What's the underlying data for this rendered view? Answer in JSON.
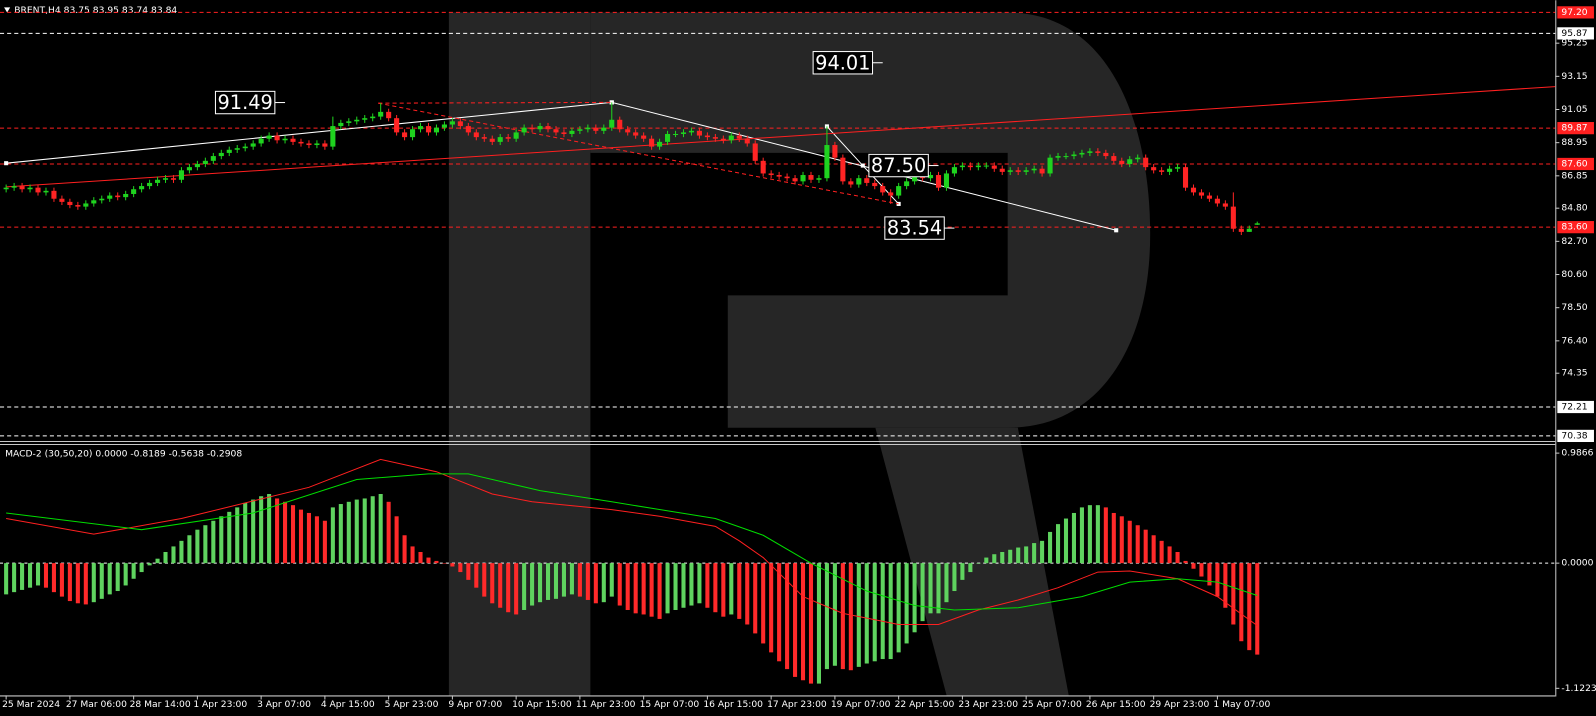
{
  "chart_data": [
    {
      "type": "candlestick",
      "title": "BRENT,H4  83.75 83.95 83.74 83.84",
      "up_color": "#1fd31f",
      "down_color": "#ff2424",
      "xlim": [
        -0.77,
        194.4
      ],
      "ylim": [
        70.06,
        97.97
      ],
      "yticks": [
        95.25,
        93.15,
        91.05,
        88.95,
        86.85,
        {
          "value": 84.8,
          "label": "84.80"
        },
        {
          "value": 82.7,
          "label": "82.70"
        },
        {
          "value": 80.6,
          "label": "80.60"
        },
        {
          "value": 78.5,
          "label": "78.50"
        },
        {
          "value": 76.4,
          "label": "76.40"
        },
        74.35
      ],
      "xticks": [
        {
          "value": 0,
          "label": "25 Mar 2024"
        },
        {
          "value": 8,
          "label": "27 Mar 06:00"
        },
        {
          "value": 16,
          "label": "28 Mar 14:00"
        },
        {
          "value": 24,
          "label": "1 Apr 23:00"
        },
        {
          "value": 32,
          "label": "3 Apr 07:00"
        },
        {
          "value": 40,
          "label": "4 Apr 15:00"
        },
        {
          "value": 48,
          "label": "5 Apr 23:00"
        },
        {
          "value": 56,
          "label": "9 Apr 07:00"
        },
        {
          "value": 64,
          "label": "10 Apr 15:00"
        },
        {
          "value": 72,
          "label": "11 Apr 23:00"
        },
        {
          "value": 80,
          "label": "15 Apr 07:00"
        },
        {
          "value": 88,
          "label": "16 Apr 15:00"
        },
        {
          "value": 96,
          "label": "17 Apr 23:00"
        },
        {
          "value": 104,
          "label": "19 Apr 07:00"
        },
        {
          "value": 112,
          "label": "22 Apr 15:00"
        },
        {
          "value": 120,
          "label": "23 Apr 23:00"
        },
        {
          "value": 128,
          "label": "25 Apr 07:00"
        },
        {
          "value": 136,
          "label": "26 Apr 15:00"
        },
        {
          "value": 144,
          "label": "29 Apr 23:00"
        },
        {
          "value": 152,
          "label": "1 May 07:00"
        }
      ],
      "open": [
        86.0,
        86.1,
        86.2,
        86.0,
        86.1,
        85.8,
        85.9,
        85.4,
        85.2,
        85.0,
        84.9,
        85.1,
        85.3,
        85.4,
        85.6,
        85.5,
        85.7,
        86.0,
        86.2,
        86.4,
        86.6,
        86.7,
        86.6,
        87.2,
        87.4,
        87.6,
        87.8,
        88.1,
        88.3,
        88.5,
        88.6,
        88.7,
        88.9,
        89.2,
        89.4,
        89.1,
        89.2,
        89.0,
        88.9,
        88.8,
        88.9,
        88.7,
        90.0,
        90.2,
        90.3,
        90.4,
        90.5,
        90.6,
        90.9,
        90.5,
        89.6,
        89.3,
        89.8,
        90.0,
        89.6,
        89.9,
        90.1,
        90.3,
        90.0,
        89.6,
        89.3,
        89.2,
        89.0,
        89.3,
        89.2,
        89.6,
        89.9,
        89.8,
        90.0,
        89.8,
        89.6,
        89.5,
        89.7,
        89.8,
        89.9,
        89.7,
        89.9,
        90.4,
        89.8,
        89.6,
        89.4,
        89.2,
        88.7,
        89.0,
        89.5,
        89.5,
        89.6,
        89.7,
        89.4,
        89.3,
        89.2,
        89.1,
        89.4,
        89.2,
        88.9,
        87.8,
        87.0,
        86.9,
        86.8,
        86.7,
        86.5,
        86.9,
        86.6,
        86.7,
        88.8,
        88.0,
        86.5,
        86.3,
        86.7,
        86.4,
        86.2,
        85.8,
        85.6,
        86.2,
        86.5,
        86.8,
        86.7,
        86.9,
        86.1,
        87.0,
        87.4,
        87.5,
        87.4,
        87.5,
        87.5,
        87.3,
        87.1,
        87.2,
        87.1,
        87.2,
        87.3,
        87.0,
        88.0,
        88.1,
        88.1,
        88.2,
        88.3,
        88.4,
        88.3,
        88.1,
        87.8,
        87.6,
        87.9,
        88.0,
        87.4,
        87.2,
        87.1,
        87.3,
        87.4,
        86.1,
        85.8,
        85.6,
        85.4,
        85.1,
        84.9,
        83.5,
        83.3,
        83.75
      ],
      "high": [
        86.3,
        86.4,
        86.4,
        86.3,
        86.3,
        86.1,
        86.1,
        85.6,
        85.4,
        85.2,
        85.3,
        85.5,
        85.6,
        85.8,
        85.8,
        85.9,
        86.2,
        86.4,
        86.6,
        86.8,
        86.9,
        86.9,
        87.4,
        87.6,
        87.8,
        88.0,
        88.3,
        88.5,
        88.7,
        88.8,
        88.9,
        89.1,
        89.4,
        89.6,
        89.6,
        89.4,
        89.4,
        89.2,
        89.1,
        89.1,
        89.1,
        90.6,
        90.4,
        90.5,
        90.6,
        90.7,
        90.8,
        91.46,
        91.1,
        90.7,
        89.8,
        90.0,
        90.2,
        90.2,
        90.1,
        90.3,
        90.5,
        90.5,
        90.2,
        89.8,
        89.5,
        89.4,
        89.5,
        89.5,
        89.8,
        90.1,
        90.1,
        90.2,
        90.2,
        90.0,
        89.8,
        89.9,
        90.0,
        90.1,
        90.1,
        90.1,
        91.5,
        90.6,
        90.0,
        89.8,
        89.6,
        89.4,
        89.2,
        89.7,
        89.7,
        89.8,
        89.9,
        89.9,
        89.6,
        89.5,
        89.4,
        89.6,
        89.6,
        89.4,
        89.1,
        88.0,
        87.2,
        87.1,
        87.0,
        86.9,
        87.1,
        87.1,
        86.9,
        89.98,
        89.0,
        88.2,
        86.7,
        86.9,
        86.9,
        86.6,
        86.4,
        86.0,
        86.4,
        86.7,
        87.0,
        87.0,
        87.1,
        87.1,
        87.2,
        87.6,
        87.7,
        87.7,
        87.7,
        87.7,
        87.7,
        87.5,
        87.4,
        87.4,
        87.4,
        87.5,
        87.5,
        88.2,
        88.3,
        88.3,
        88.4,
        88.5,
        88.6,
        88.6,
        88.5,
        88.3,
        88.0,
        88.1,
        88.2,
        88.2,
        87.6,
        87.4,
        87.5,
        87.6,
        87.6,
        86.3,
        86.0,
        85.8,
        85.6,
        85.3,
        85.8,
        83.7,
        83.7,
        83.95
      ],
      "low": [
        85.8,
        85.9,
        85.8,
        85.8,
        85.6,
        85.6,
        85.2,
        85.0,
        84.8,
        84.7,
        84.7,
        84.9,
        85.1,
        85.2,
        85.3,
        85.3,
        85.5,
        85.8,
        86.0,
        86.2,
        86.4,
        86.4,
        86.4,
        87.0,
        87.2,
        87.4,
        87.6,
        87.9,
        88.1,
        88.3,
        88.4,
        88.5,
        88.7,
        89.0,
        88.9,
        88.9,
        88.8,
        88.7,
        88.6,
        88.6,
        88.5,
        88.5,
        89.8,
        90.0,
        90.1,
        90.2,
        90.3,
        90.4,
        90.3,
        89.4,
        89.1,
        89.1,
        89.6,
        89.4,
        89.4,
        89.7,
        89.9,
        89.8,
        89.4,
        89.1,
        89.0,
        88.8,
        88.8,
        89.0,
        89.0,
        89.4,
        89.6,
        89.6,
        89.6,
        89.4,
        89.3,
        89.3,
        89.5,
        89.6,
        89.5,
        89.5,
        89.7,
        89.6,
        89.4,
        89.2,
        89.0,
        88.5,
        88.5,
        88.8,
        89.3,
        89.3,
        89.4,
        89.2,
        89.1,
        89.0,
        88.9,
        88.9,
        89.0,
        88.7,
        87.6,
        86.8,
        86.7,
        86.6,
        86.5,
        86.3,
        86.3,
        86.4,
        86.4,
        86.5,
        87.8,
        86.3,
        86.1,
        86.1,
        86.2,
        86.0,
        85.6,
        85.07,
        85.4,
        86.0,
        86.3,
        86.5,
        86.5,
        85.9,
        85.9,
        86.8,
        87.2,
        87.2,
        87.2,
        87.3,
        87.1,
        86.9,
        86.9,
        86.9,
        86.9,
        87.0,
        86.8,
        86.8,
        87.8,
        87.9,
        87.9,
        88.0,
        88.1,
        88.1,
        87.9,
        87.6,
        87.4,
        87.4,
        87.7,
        87.2,
        87.0,
        86.9,
        86.9,
        87.1,
        85.9,
        85.6,
        85.4,
        85.2,
        84.9,
        84.7,
        83.3,
        83.1,
        83.3,
        83.74
      ],
      "close": [
        86.1,
        86.2,
        86.0,
        86.1,
        85.8,
        85.9,
        85.4,
        85.2,
        85.0,
        84.9,
        85.1,
        85.3,
        85.4,
        85.6,
        85.5,
        85.7,
        86.0,
        86.2,
        86.4,
        86.6,
        86.7,
        86.6,
        87.2,
        87.4,
        87.6,
        87.8,
        88.1,
        88.3,
        88.5,
        88.6,
        88.7,
        88.9,
        89.2,
        89.4,
        89.1,
        89.2,
        89.0,
        88.9,
        88.8,
        88.9,
        88.7,
        90.0,
        90.2,
        90.3,
        90.4,
        90.5,
        90.6,
        90.9,
        90.5,
        89.6,
        89.3,
        89.8,
        90.0,
        89.6,
        89.9,
        90.1,
        90.3,
        90.0,
        89.6,
        89.3,
        89.2,
        89.0,
        89.3,
        89.2,
        89.6,
        89.9,
        89.8,
        90.0,
        89.8,
        89.6,
        89.5,
        89.7,
        89.8,
        89.9,
        89.7,
        89.9,
        90.4,
        89.8,
        89.6,
        89.4,
        89.2,
        88.7,
        89.0,
        89.5,
        89.5,
        89.6,
        89.7,
        89.4,
        89.3,
        89.2,
        89.1,
        89.4,
        89.2,
        88.9,
        87.8,
        87.0,
        86.9,
        86.8,
        86.7,
        86.5,
        86.9,
        86.6,
        86.7,
        88.8,
        88.0,
        86.5,
        86.3,
        86.7,
        86.4,
        86.2,
        85.8,
        85.6,
        86.2,
        86.5,
        86.8,
        86.7,
        86.9,
        86.1,
        87.0,
        87.4,
        87.5,
        87.4,
        87.5,
        87.5,
        87.3,
        87.1,
        87.2,
        87.1,
        87.2,
        87.3,
        87.0,
        88.0,
        88.1,
        88.1,
        88.2,
        88.3,
        88.4,
        88.3,
        88.1,
        87.8,
        87.6,
        87.9,
        88.0,
        87.4,
        87.2,
        87.1,
        87.3,
        87.4,
        86.1,
        85.8,
        85.6,
        85.4,
        85.1,
        84.9,
        83.5,
        83.3,
        83.5,
        83.84
      ],
      "levels": [
        {
          "value": 97.2,
          "label": "97.20",
          "color": "#ff2020"
        },
        {
          "value": 95.87,
          "label": "95.87",
          "color": "#ffffff"
        },
        {
          "value": 89.87,
          "label": "89.87",
          "color": "#ff2020"
        },
        {
          "value": 87.6,
          "label": "87.60",
          "color": "#ff2020"
        },
        {
          "value": 83.6,
          "label": "83.60",
          "color": "#ff2020"
        },
        {
          "value": 72.21,
          "label": "72.21",
          "color": "#ffffff"
        },
        {
          "value": 70.38,
          "label": "70.38",
          "color": "#ffffff"
        }
      ],
      "trendlines": [
        {
          "color": "#ffffff",
          "dashed": false,
          "x": [
            0,
            76
          ],
          "values": [
            87.65,
            91.5
          ]
        },
        {
          "color": "#ffffff",
          "dashed": false,
          "x": [
            76,
            139.3
          ],
          "values": [
            91.5,
            83.4
          ]
        },
        {
          "color": "#ffffff",
          "dashed": false,
          "x": [
            103,
            107.5,
            112
          ],
          "values": [
            89.98,
            87.5,
            85.07
          ]
        },
        {
          "color": "#ff2020",
          "dashed": false,
          "x": [
            0,
            194.4
          ],
          "values": [
            86.15,
            92.5
          ]
        },
        {
          "color": "#ff2020",
          "dashed": true,
          "x": [
            46.7,
            76
          ],
          "values": [
            91.45,
            91.5
          ]
        },
        {
          "color": "#ff2020",
          "dashed": true,
          "x": [
            46.7,
            112
          ],
          "values": [
            91.45,
            85.07
          ]
        }
      ],
      "annotations": [
        {
          "x": 35,
          "value": 91.49,
          "label": "91.49"
        },
        {
          "x": 110,
          "value": 94.01,
          "label": "94.01"
        },
        {
          "x": 117,
          "value": 87.5,
          "label": "87.50"
        },
        {
          "x": 119,
          "value": 83.54,
          "label": "83.54"
        }
      ]
    },
    {
      "type": "macd",
      "title": "MACD-2 (30,50,20) 0.0000 -0.8189 -0.5638 -0.2908",
      "ylim": [
        -1.186,
        1.05
      ],
      "yticks": [
        0.9866,
        {
          "value": 0,
          "label": "0.0000"
        },
        -1.1223
      ],
      "zero_line": true,
      "up_color": "#5fd35f",
      "down_color": "#ff2a2a",
      "histogram": [
        -0.28,
        -0.26,
        -0.24,
        -0.22,
        -0.2,
        -0.22,
        -0.26,
        -0.3,
        -0.34,
        -0.36,
        -0.37,
        -0.35,
        -0.32,
        -0.28,
        -0.25,
        -0.2,
        -0.14,
        -0.08,
        -0.02,
        0.04,
        0.1,
        0.15,
        0.2,
        0.25,
        0.3,
        0.34,
        0.38,
        0.42,
        0.46,
        0.5,
        0.54,
        0.57,
        0.6,
        0.62,
        0.58,
        0.55,
        0.52,
        0.48,
        0.45,
        0.42,
        0.38,
        0.5,
        0.53,
        0.55,
        0.57,
        0.58,
        0.6,
        0.62,
        0.55,
        0.42,
        0.25,
        0.15,
        0.1,
        0.05,
        0.02,
        0.0,
        -0.03,
        -0.08,
        -0.15,
        -0.22,
        -0.3,
        -0.36,
        -0.4,
        -0.44,
        -0.46,
        -0.42,
        -0.38,
        -0.35,
        -0.33,
        -0.32,
        -0.3,
        -0.28,
        -0.3,
        -0.33,
        -0.36,
        -0.35,
        -0.3,
        -0.38,
        -0.42,
        -0.45,
        -0.46,
        -0.48,
        -0.5,
        -0.45,
        -0.42,
        -0.4,
        -0.38,
        -0.36,
        -0.4,
        -0.44,
        -0.48,
        -0.46,
        -0.5,
        -0.55,
        -0.63,
        -0.72,
        -0.8,
        -0.88,
        -0.95,
        -1.02,
        -1.05,
        -1.08,
        -1.08,
        -0.95,
        -0.92,
        -0.95,
        -0.96,
        -0.93,
        -0.9,
        -0.88,
        -0.86,
        -0.86,
        -0.8,
        -0.72,
        -0.62,
        -0.52,
        -0.45,
        -0.45,
        -0.35,
        -0.25,
        -0.15,
        -0.08,
        0.0,
        0.05,
        0.08,
        0.1,
        0.12,
        0.14,
        0.15,
        0.18,
        0.2,
        0.28,
        0.35,
        0.4,
        0.45,
        0.5,
        0.52,
        0.52,
        0.5,
        0.45,
        0.42,
        0.38,
        0.34,
        0.3,
        0.25,
        0.2,
        0.15,
        0.1,
        0.02,
        -0.05,
        -0.12,
        -0.2,
        -0.3,
        -0.4,
        -0.55,
        -0.7,
        -0.78,
        -0.82
      ],
      "series": [
        {
          "color": "#ff2020",
          "x": [
            0,
            11,
            22,
            38,
            47,
            54,
            61,
            66,
            76,
            82,
            89,
            92,
            95,
            100,
            105,
            112,
            117,
            122,
            127,
            132,
            137,
            141,
            147,
            152,
            157
          ],
          "values": [
            0.4,
            0.26,
            0.4,
            0.68,
            0.93,
            0.82,
            0.62,
            0.55,
            0.48,
            0.42,
            0.33,
            0.2,
            0.05,
            -0.3,
            -0.45,
            -0.55,
            -0.55,
            -0.42,
            -0.33,
            -0.22,
            -0.08,
            -0.07,
            -0.14,
            -0.3,
            -0.56
          ]
        },
        {
          "color": "#00dd00",
          "x": [
            0,
            17,
            31,
            44,
            53,
            58,
            67,
            76,
            89,
            95,
            101,
            108,
            114,
            119,
            127,
            135,
            141,
            147,
            152,
            157
          ],
          "values": [
            0.45,
            0.3,
            0.45,
            0.75,
            0.8,
            0.8,
            0.65,
            0.55,
            0.4,
            0.25,
            0.0,
            -0.25,
            -0.38,
            -0.42,
            -0.4,
            -0.3,
            -0.17,
            -0.14,
            -0.17,
            -0.29
          ]
        }
      ]
    }
  ]
}
